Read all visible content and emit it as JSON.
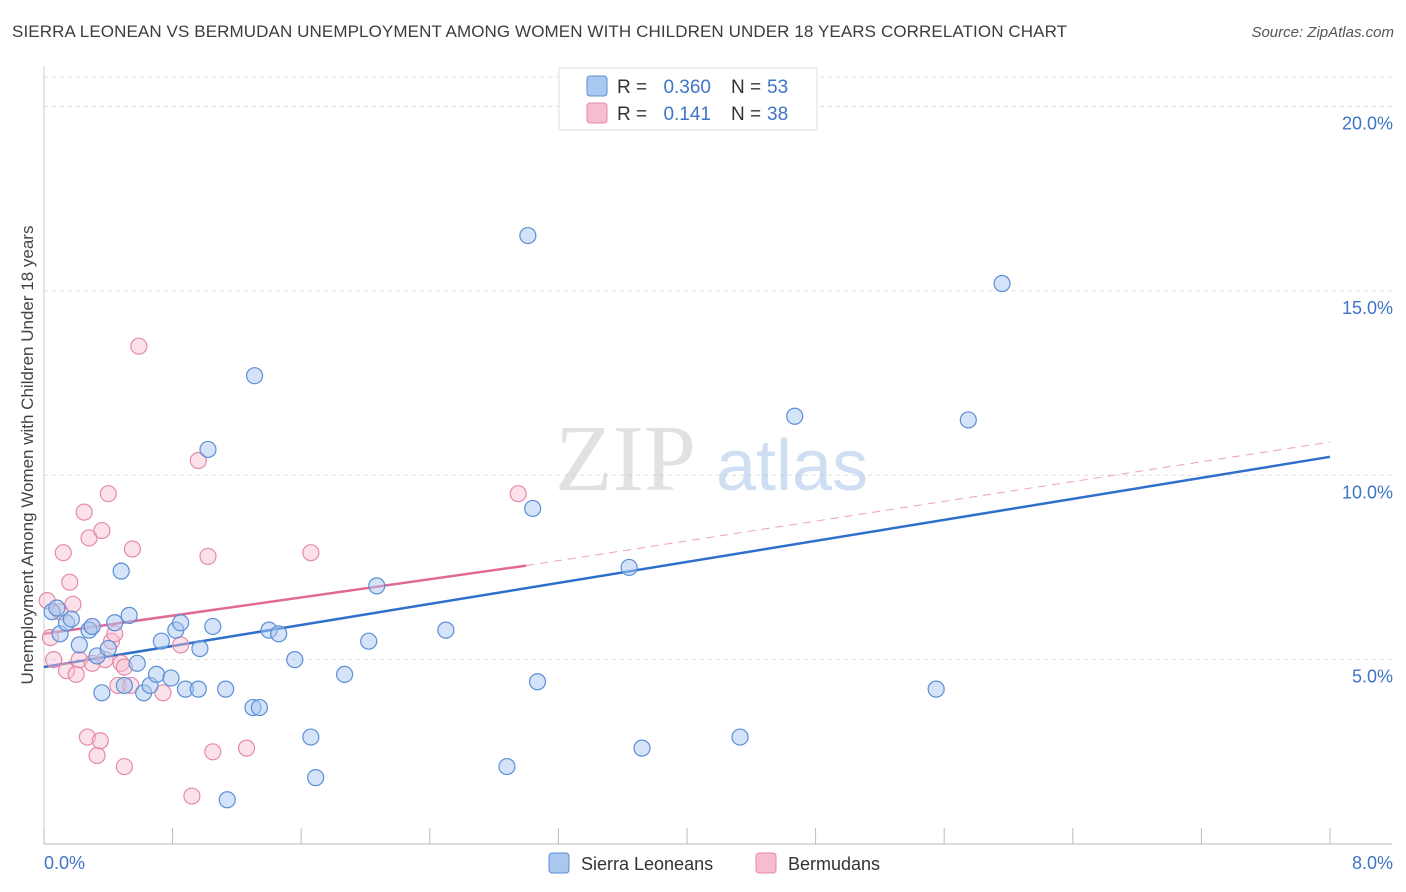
{
  "title": "SIERRA LEONEAN VS BERMUDAN UNEMPLOYMENT AMONG WOMEN WITH CHILDREN UNDER 18 YEARS CORRELATION CHART",
  "source": "Source: ZipAtlas.com",
  "watermark": {
    "zip": "ZIP",
    "atlas": "atlas"
  },
  "colors": {
    "blue_fill": "#a9c8f0",
    "blue_stroke": "#5b8fd6",
    "blue_line": "#2f6fcc",
    "pink_fill": "#f6bcd0",
    "pink_stroke": "#e68aaa",
    "pink_line": "#e06a95",
    "tick_text": "#3f74c7",
    "grid": "#dddddd"
  },
  "legend": {
    "rows": [
      {
        "r_label": "R =",
        "r_value": "0.360",
        "n_label": "N =",
        "n_value": "53",
        "series": "blue"
      },
      {
        "r_label": "R =",
        "r_value": "0.141",
        "n_label": "N =",
        "n_value": "38",
        "series": "pink"
      }
    ]
  },
  "chart_data": {
    "type": "scatter",
    "title": "SIERRA LEONEAN VS BERMUDAN UNEMPLOYMENT AMONG WOMEN WITH CHILDREN UNDER 18 YEARS CORRELATION CHART",
    "xlabel": "",
    "ylabel": "Unemployment Among Women with Children Under 18 years",
    "xlim": [
      0,
      8
    ],
    "ylim": [
      0,
      20.8
    ],
    "x_tick_labels": {
      "min": "0.0%",
      "max": "8.0%"
    },
    "y_ticks": [
      5,
      10,
      15,
      20
    ],
    "y_tick_labels": [
      "5.0%",
      "10.0%",
      "15.0%",
      "20.0%"
    ],
    "grid": true,
    "legend_position": "top-center",
    "series": [
      {
        "name": "Sierra Leoneans",
        "color": "blue",
        "r": 0.36,
        "n": 53,
        "trend": {
          "x0": 0.0,
          "y0": 4.8,
          "x1": 8.0,
          "y1": 10.5
        },
        "points": [
          [
            0.05,
            6.3
          ],
          [
            0.08,
            6.4
          ],
          [
            0.1,
            5.7
          ],
          [
            0.14,
            6.0
          ],
          [
            0.17,
            6.1
          ],
          [
            0.22,
            5.4
          ],
          [
            0.28,
            5.8
          ],
          [
            0.3,
            5.9
          ],
          [
            0.33,
            5.1
          ],
          [
            0.36,
            4.1
          ],
          [
            0.4,
            5.3
          ],
          [
            0.44,
            6.0
          ],
          [
            0.48,
            7.4
          ],
          [
            0.5,
            4.3
          ],
          [
            0.53,
            6.2
          ],
          [
            0.58,
            4.9
          ],
          [
            0.62,
            4.1
          ],
          [
            0.66,
            4.3
          ],
          [
            0.7,
            4.6
          ],
          [
            0.73,
            5.5
          ],
          [
            0.79,
            4.5
          ],
          [
            0.82,
            5.8
          ],
          [
            0.85,
            6.0
          ],
          [
            0.88,
            4.2
          ],
          [
            0.96,
            4.2
          ],
          [
            0.97,
            5.3
          ],
          [
            1.02,
            10.7
          ],
          [
            1.05,
            5.9
          ],
          [
            1.13,
            4.2
          ],
          [
            1.14,
            1.2
          ],
          [
            1.3,
            3.7
          ],
          [
            1.34,
            3.7
          ],
          [
            1.31,
            12.7
          ],
          [
            1.4,
            5.8
          ],
          [
            1.46,
            5.7
          ],
          [
            1.56,
            5.0
          ],
          [
            1.66,
            2.9
          ],
          [
            1.69,
            1.8
          ],
          [
            1.87,
            4.6
          ],
          [
            2.02,
            5.5
          ],
          [
            2.07,
            7.0
          ],
          [
            2.5,
            5.8
          ],
          [
            2.88,
            2.1
          ],
          [
            3.01,
            16.5
          ],
          [
            3.04,
            9.1
          ],
          [
            3.07,
            4.4
          ],
          [
            3.64,
            7.5
          ],
          [
            3.72,
            2.6
          ],
          [
            4.33,
            2.9
          ],
          [
            4.67,
            11.6
          ],
          [
            5.55,
            4.2
          ],
          [
            5.75,
            11.5
          ],
          [
            5.96,
            15.2
          ]
        ]
      },
      {
        "name": "Bermudans",
        "color": "pink",
        "r": 0.141,
        "n": 38,
        "trend": {
          "x0": 0.0,
          "y0": 5.7,
          "x1": 3.0,
          "y1": 7.55
        },
        "trend_dashed": {
          "x0": 3.0,
          "y0": 7.55,
          "x1": 8.0,
          "y1": 10.9
        },
        "points": [
          [
            0.02,
            6.6
          ],
          [
            0.04,
            5.6
          ],
          [
            0.06,
            5.0
          ],
          [
            0.1,
            6.3
          ],
          [
            0.12,
            7.9
          ],
          [
            0.14,
            4.7
          ],
          [
            0.16,
            7.1
          ],
          [
            0.18,
            6.5
          ],
          [
            0.2,
            4.6
          ],
          [
            0.22,
            5.0
          ],
          [
            0.25,
            9.0
          ],
          [
            0.27,
            2.9
          ],
          [
            0.28,
            8.3
          ],
          [
            0.3,
            5.9
          ],
          [
            0.3,
            4.9
          ],
          [
            0.33,
            2.4
          ],
          [
            0.35,
            2.8
          ],
          [
            0.36,
            8.5
          ],
          [
            0.38,
            5.0
          ],
          [
            0.4,
            9.5
          ],
          [
            0.42,
            5.5
          ],
          [
            0.44,
            5.7
          ],
          [
            0.46,
            4.3
          ],
          [
            0.48,
            4.9
          ],
          [
            0.5,
            4.8
          ],
          [
            0.5,
            2.1
          ],
          [
            0.54,
            4.3
          ],
          [
            0.55,
            8.0
          ],
          [
            0.59,
            13.5
          ],
          [
            0.74,
            4.1
          ],
          [
            0.85,
            5.4
          ],
          [
            0.92,
            1.3
          ],
          [
            0.96,
            10.4
          ],
          [
            1.02,
            7.8
          ],
          [
            1.05,
            2.5
          ],
          [
            1.26,
            2.6
          ],
          [
            1.66,
            7.9
          ],
          [
            2.95,
            9.5
          ]
        ]
      }
    ]
  },
  "bottom_legend": {
    "items": [
      {
        "label": "Sierra Leoneans",
        "series": "blue"
      },
      {
        "label": "Bermudans",
        "series": "pink"
      }
    ]
  }
}
